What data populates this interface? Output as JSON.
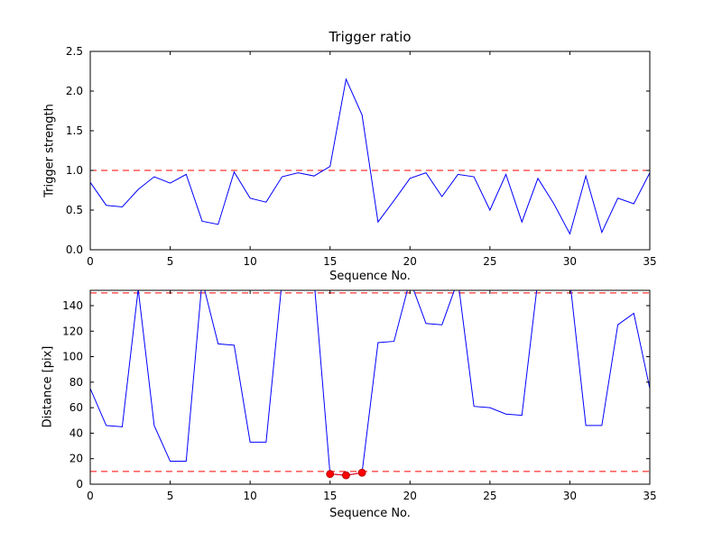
{
  "figure": {
    "background": "#ffffff",
    "line_color": "#0000ff",
    "threshold_color": "#ff0000",
    "axis_color": "#000000"
  },
  "chart_data": [
    {
      "type": "line",
      "name": "trigger-ratio-plot",
      "title": "Trigger ratio",
      "xlabel": "Sequence No.",
      "ylabel": "Trigger strength",
      "xlim": [
        0,
        35
      ],
      "ylim": [
        0,
        2.5
      ],
      "grid": false,
      "legend": "none",
      "xticks": [
        0,
        5,
        10,
        15,
        20,
        25,
        30,
        35
      ],
      "xtick_labels": [
        "0",
        "5",
        "10",
        "15",
        "20",
        "25",
        "30",
        "35"
      ],
      "yticks": [
        0,
        0.5,
        1.0,
        1.5,
        2.0,
        2.5
      ],
      "ytick_labels": [
        "0.0",
        "0.5",
        "1.0",
        "1.5",
        "2.0",
        "2.5"
      ],
      "x": [
        0,
        1,
        2,
        3,
        4,
        5,
        6,
        7,
        8,
        9,
        10,
        11,
        12,
        13,
        14,
        15,
        16,
        17,
        18,
        19,
        20,
        21,
        22,
        23,
        24,
        25,
        26,
        27,
        28,
        29,
        30,
        31,
        32,
        33,
        34,
        35
      ],
      "series": [
        {
          "name": "trigger strength",
          "color": "#0000ff",
          "values": [
            0.85,
            0.56,
            0.54,
            0.76,
            0.92,
            0.84,
            0.95,
            0.36,
            0.32,
            0.98,
            0.65,
            0.6,
            0.92,
            0.97,
            0.93,
            1.05,
            2.15,
            1.7,
            0.35,
            0.62,
            0.9,
            0.97,
            0.67,
            0.95,
            0.92,
            0.5,
            0.95,
            0.35,
            0.9,
            0.58,
            0.2,
            0.93,
            0.22,
            0.65,
            0.58,
            0.97
          ]
        }
      ],
      "threshold_lines": [
        {
          "y": 1.0,
          "color": "#ff0000",
          "style": "dashed"
        }
      ]
    },
    {
      "type": "line",
      "name": "distance-plot",
      "title": "",
      "xlabel": "Sequence No.",
      "ylabel": "Distance [pix]",
      "xlim": [
        0,
        35
      ],
      "ylim": [
        0,
        152
      ],
      "grid": false,
      "legend": "none",
      "xticks": [
        0,
        5,
        10,
        15,
        20,
        25,
        30,
        35
      ],
      "xtick_labels": [
        "0",
        "5",
        "10",
        "15",
        "20",
        "25",
        "30",
        "35"
      ],
      "yticks": [
        0,
        20,
        40,
        60,
        80,
        100,
        120,
        140
      ],
      "ytick_labels": [
        "0",
        "20",
        "40",
        "60",
        "80",
        "100",
        "120",
        "140"
      ],
      "x": [
        0,
        1,
        2,
        3,
        4,
        5,
        6,
        7,
        8,
        9,
        10,
        11,
        12,
        13,
        14,
        15,
        16,
        17,
        18,
        19,
        20,
        21,
        22,
        23,
        24,
        25,
        26,
        27,
        28,
        29,
        30,
        31,
        32,
        33,
        34,
        35
      ],
      "series": [
        {
          "name": "distance",
          "color": "#0000ff",
          "values": [
            75,
            46,
            45,
            153,
            46,
            18,
            18,
            160,
            110,
            109,
            33,
            33,
            160,
            160,
            160,
            8,
            7,
            9,
            111,
            112,
            160,
            126,
            125,
            160,
            61,
            60,
            55,
            54,
            160,
            160,
            160,
            46,
            46,
            125,
            134,
            75
          ]
        }
      ],
      "threshold_lines": [
        {
          "y": 150,
          "color": "#ff0000",
          "style": "dashed"
        },
        {
          "y": 10,
          "color": "#ff0000",
          "style": "dashed"
        }
      ],
      "markers": {
        "color": "#ff0000",
        "edge_color": "#aa0000",
        "size": 4,
        "points": [
          {
            "x": 15,
            "y": 8
          },
          {
            "x": 16,
            "y": 7
          },
          {
            "x": 17,
            "y": 9
          }
        ]
      }
    }
  ]
}
